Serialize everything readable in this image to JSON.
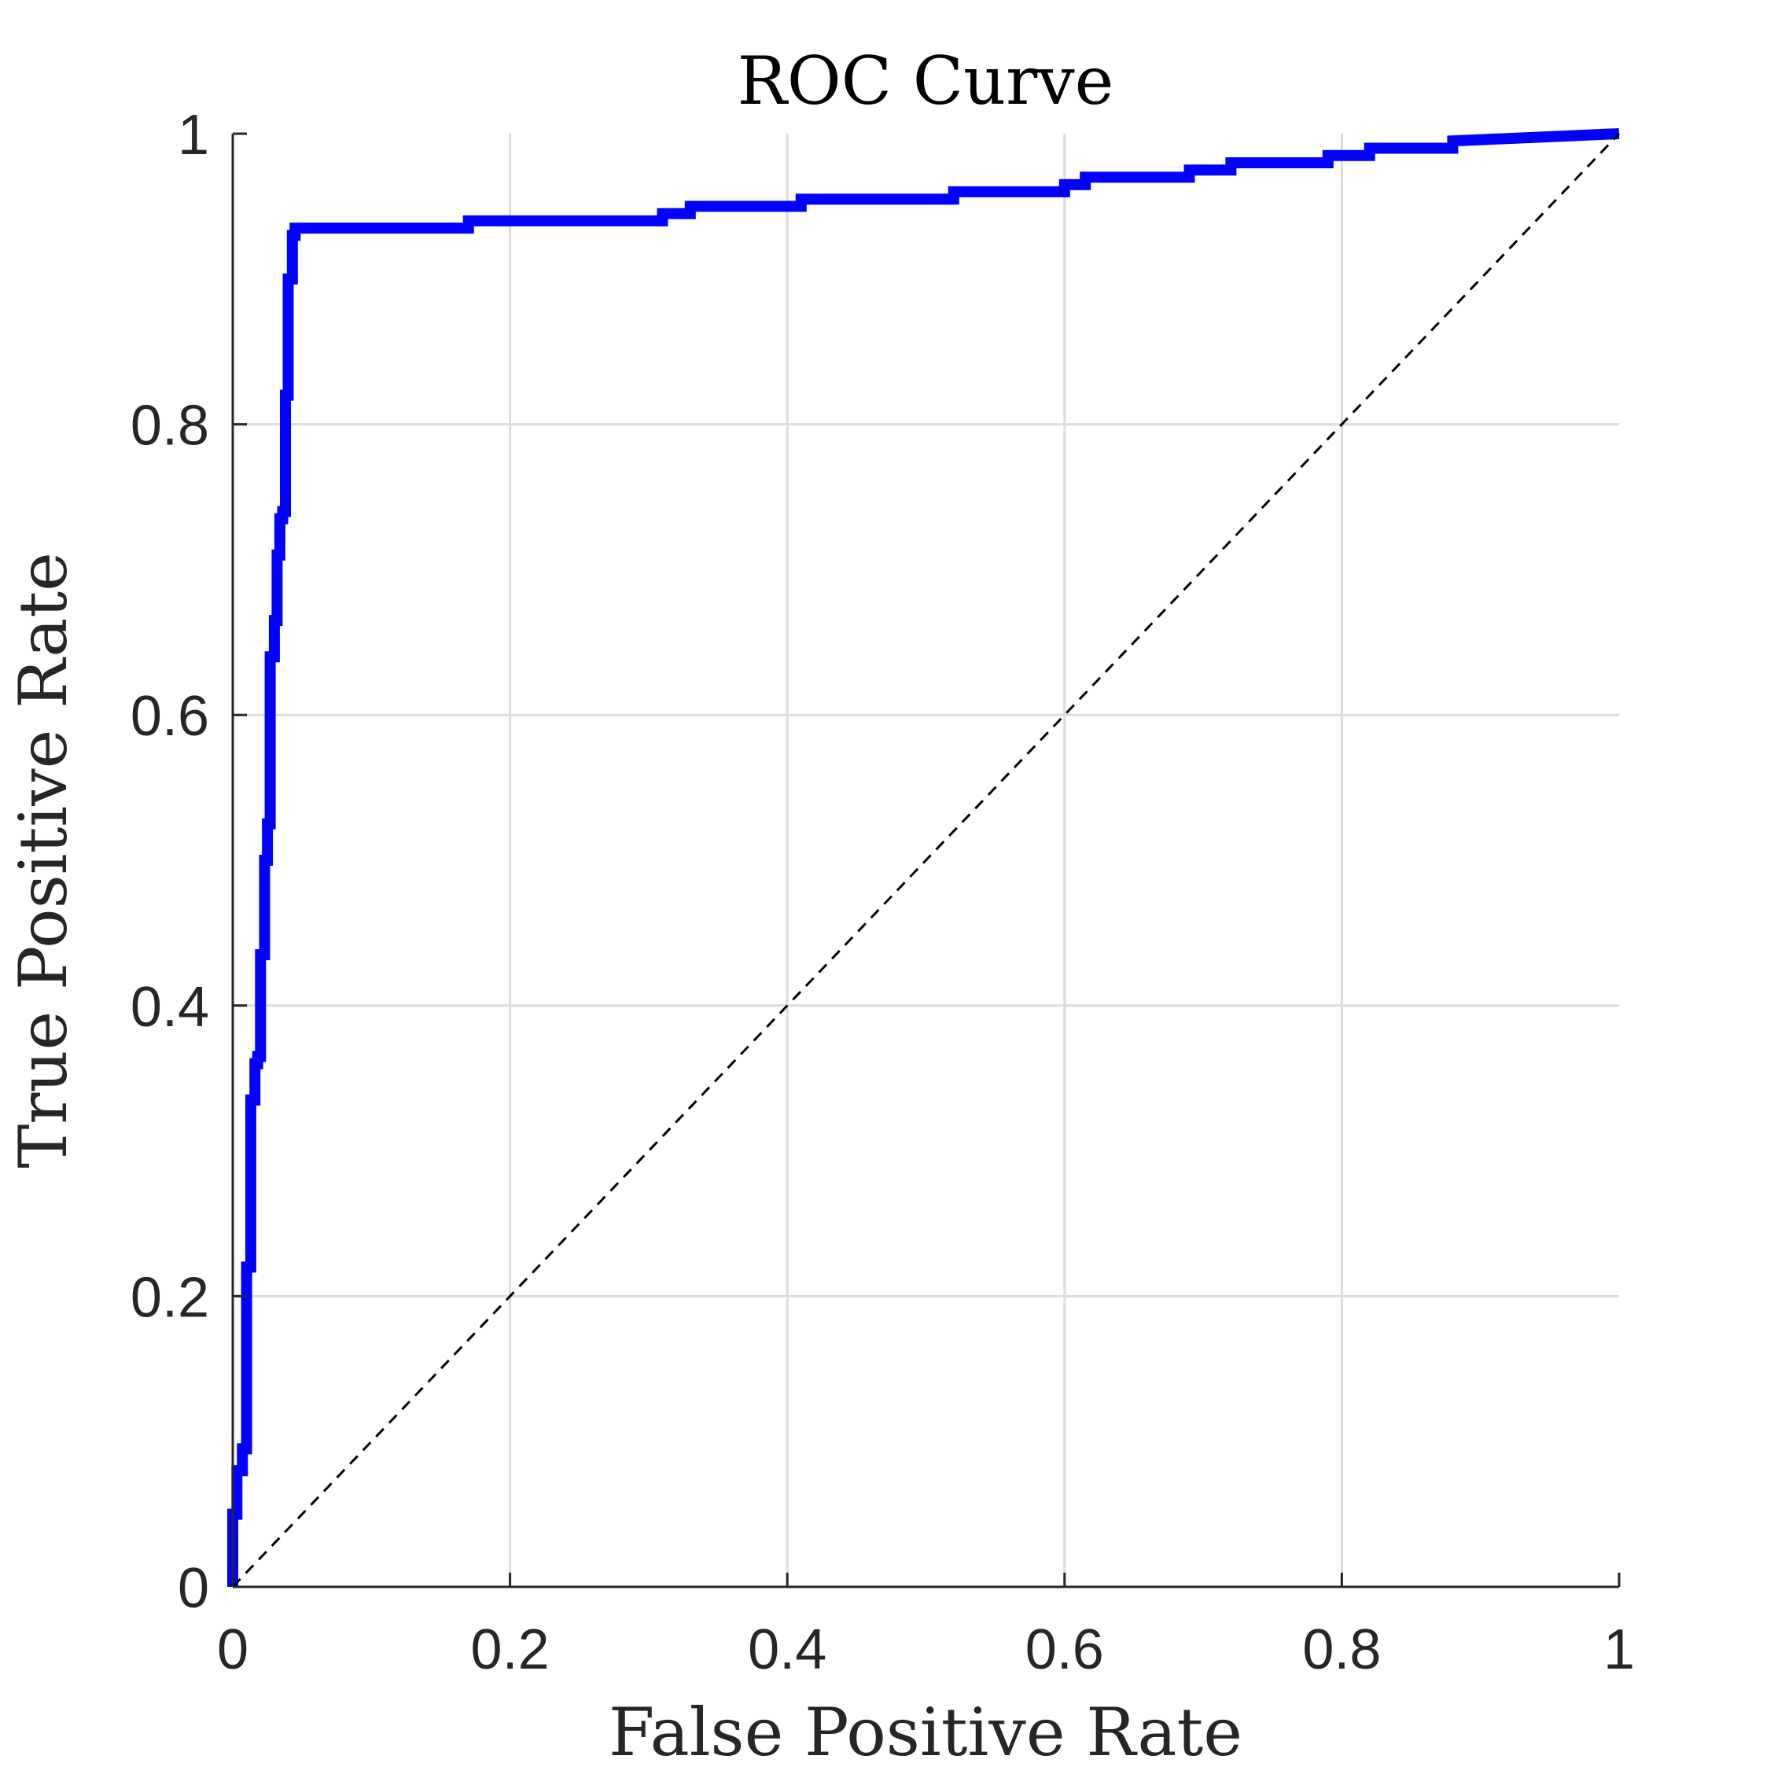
{
  "chart_data": {
    "type": "line",
    "title": "ROC Curve",
    "xlabel": "False Positive Rate",
    "ylabel": "True Positive Rate",
    "xlim": [
      0,
      1
    ],
    "ylim": [
      0,
      1
    ],
    "grid": true,
    "xticks": [
      0,
      0.2,
      0.4,
      0.6,
      0.8,
      1
    ],
    "yticks": [
      0,
      0.2,
      0.4,
      0.6,
      0.8,
      1
    ],
    "xtick_labels": [
      "0",
      "0.2",
      "0.4",
      "0.6",
      "0.8",
      "1"
    ],
    "ytick_labels": [
      "0",
      "0.2",
      "0.4",
      "0.6",
      "0.8",
      "1"
    ],
    "series": [
      {
        "color": "#0000ff",
        "style": "solid",
        "x": [
          0,
          0,
          0.003,
          0.003,
          0.007,
          0.007,
          0.01,
          0.01,
          0.013,
          0.013,
          0.016,
          0.016,
          0.018,
          0.018,
          0.02,
          0.02,
          0.023,
          0.023,
          0.025,
          0.025,
          0.027,
          0.027,
          0.03,
          0.03,
          0.032,
          0.032,
          0.034,
          0.034,
          0.036,
          0.036,
          0.038,
          0.038,
          0.04,
          0.04,
          0.043,
          0.043,
          0.045,
          0.045,
          0.17,
          0.17,
          0.31,
          0.31,
          0.33,
          0.33,
          0.41,
          0.41,
          0.52,
          0.52,
          0.6,
          0.6,
          0.615,
          0.615,
          0.69,
          0.69,
          0.72,
          0.72,
          0.79,
          0.79,
          0.82,
          0.82,
          0.88,
          0.88,
          1
        ],
        "y": [
          0,
          0.05,
          0.05,
          0.08,
          0.08,
          0.095,
          0.095,
          0.22,
          0.22,
          0.335,
          0.335,
          0.36,
          0.36,
          0.365,
          0.365,
          0.435,
          0.435,
          0.5,
          0.5,
          0.525,
          0.525,
          0.64,
          0.64,
          0.665,
          0.665,
          0.71,
          0.71,
          0.735,
          0.735,
          0.74,
          0.74,
          0.82,
          0.82,
          0.9,
          0.9,
          0.93,
          0.93,
          0.935,
          0.935,
          0.94,
          0.94,
          0.945,
          0.945,
          0.95,
          0.95,
          0.955,
          0.955,
          0.96,
          0.96,
          0.965,
          0.965,
          0.97,
          0.97,
          0.975,
          0.975,
          0.98,
          0.98,
          0.985,
          0.985,
          0.99,
          0.99,
          0.995,
          1
        ]
      },
      {
        "color": "#000000",
        "style": "dashed",
        "x": [
          0,
          1
        ],
        "y": [
          0,
          1
        ]
      }
    ]
  }
}
